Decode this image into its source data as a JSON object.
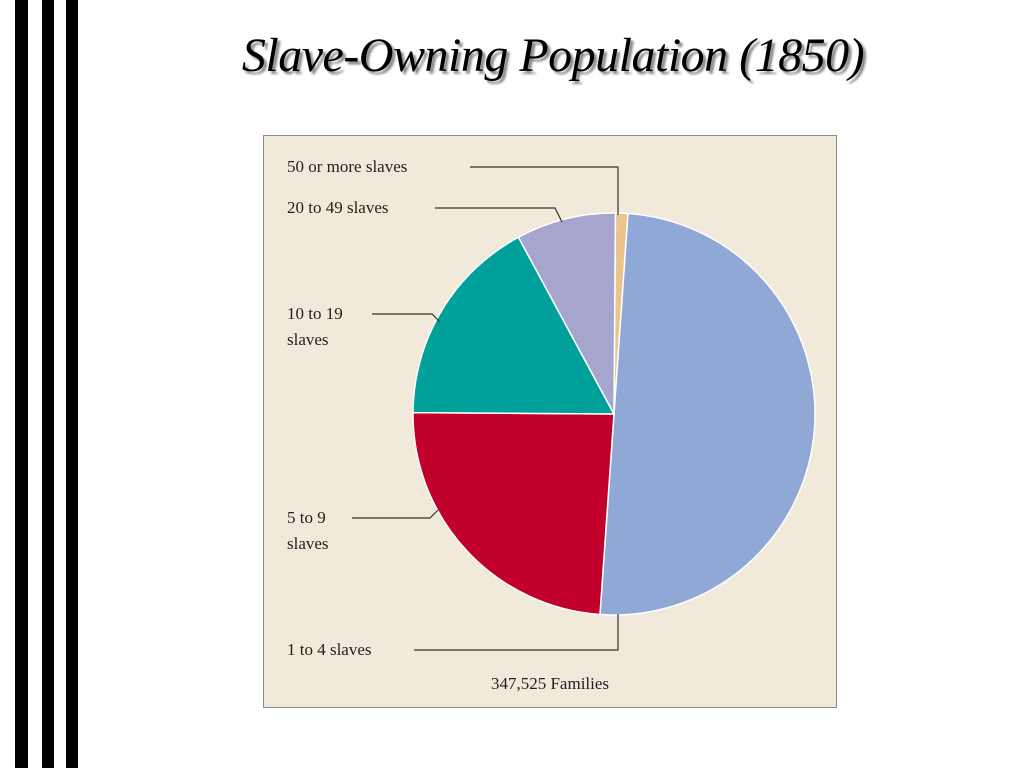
{
  "chart_data": {
    "type": "pie",
    "title": "Slave-Owning Population (1850)",
    "caption": "347,525 Families",
    "categories": [
      "50 or more slaves",
      "1 to 4 slaves",
      "5 to 9 slaves",
      "10 to 19 slaves",
      "20 to 49 slaves"
    ],
    "values": [
      1,
      50,
      24,
      17,
      8
    ],
    "colors": [
      "#e9c58c",
      "#8fa8d5",
      "#c1002b",
      "#00a19b",
      "#a5a5cd"
    ]
  }
}
